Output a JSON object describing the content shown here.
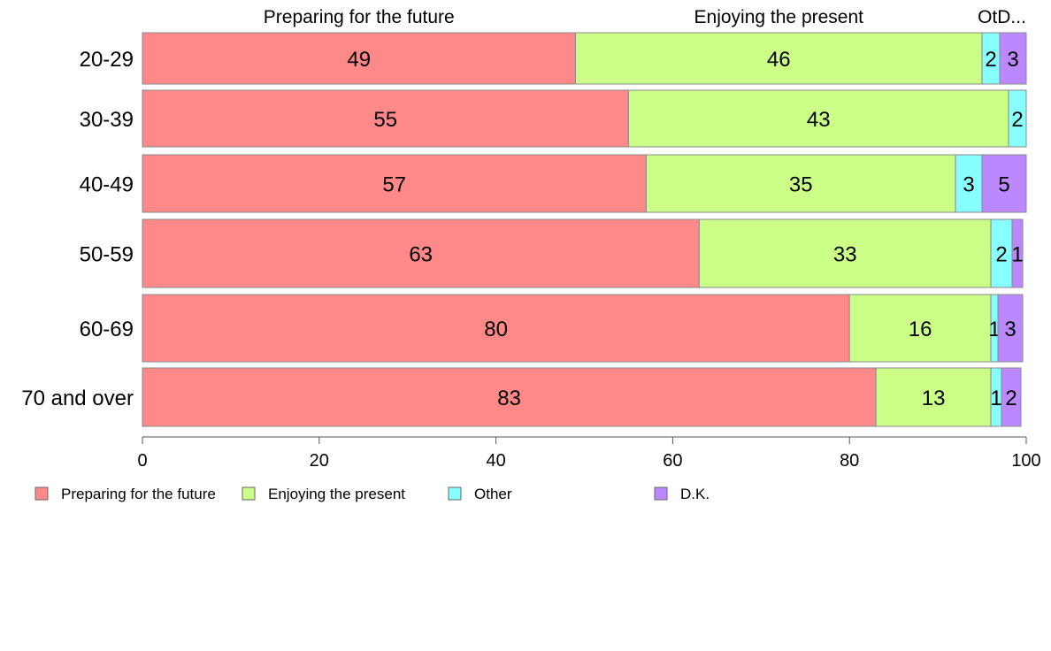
{
  "chart_data": {
    "type": "bar",
    "orientation": "horizontal",
    "stacked": true,
    "categories": [
      "20-29",
      "30-39",
      "40-49",
      "50-59",
      "60-69",
      "70 and over"
    ],
    "series": [
      {
        "name": "Preparing for the future",
        "color": "#ff8888",
        "values": [
          49,
          55,
          57,
          63,
          80,
          83
        ],
        "labels": [
          "49",
          "55",
          "57",
          "63",
          "80",
          "83"
        ]
      },
      {
        "name": "Enjoying the present",
        "color": "#ccff88",
        "values": [
          46,
          43,
          35,
          33,
          16,
          13
        ],
        "labels": [
          "46",
          "43",
          "35",
          "33",
          "16",
          "13"
        ]
      },
      {
        "name": "Other",
        "color": "#88ffff",
        "values": [
          2,
          2,
          3,
          2.4,
          0.8,
          1.2
        ],
        "labels": [
          "2",
          "2",
          "3",
          "2",
          "1",
          "1"
        ]
      },
      {
        "name": "D.K.",
        "color": "#bb88ff",
        "values": [
          3,
          0,
          5,
          1.2,
          2.8,
          2.2
        ],
        "labels": [
          "3",
          "",
          "5",
          "1",
          "3",
          "2"
        ]
      }
    ],
    "top_labels": [
      "Preparing for the future",
      "Enjoying the present",
      "OtD..."
    ],
    "xlim": [
      0,
      100
    ],
    "xticks": [
      0,
      20,
      40,
      60,
      80,
      100
    ],
    "grid": false,
    "legend_position": "bottom-left"
  }
}
